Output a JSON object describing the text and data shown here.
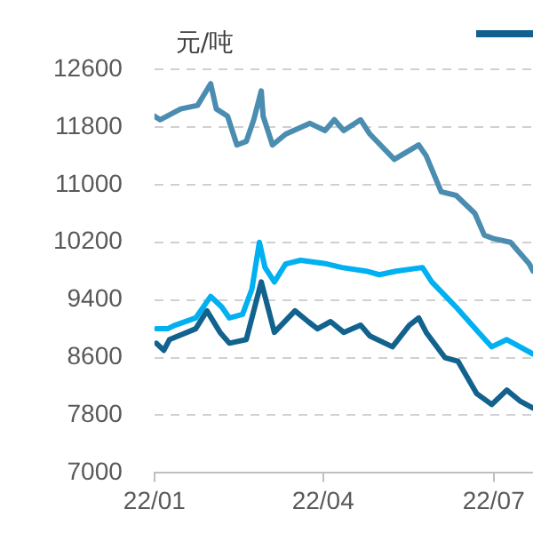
{
  "chart_data": {
    "type": "line",
    "ylabel": "元/吨",
    "ylim": [
      7000,
      12600
    ],
    "yticks": [
      7000,
      7800,
      8600,
      9400,
      10200,
      11000,
      11800,
      12600
    ],
    "xlim": [
      "--01-01",
      "--07-22"
    ],
    "xticks": [
      {
        "value": "--01-01",
        "label": "22/01"
      },
      {
        "value": "--04-01",
        "label": "22/04"
      },
      {
        "value": "--07-01",
        "label": "22/07"
      }
    ],
    "grid": "y",
    "marker": "none",
    "line_style": "solid",
    "series": [
      {
        "color": "#4a8db0",
        "x": [
          "--01-01",
          "--01-04",
          "--01-15",
          "--01-24",
          "--01-31",
          "--02-03",
          "--02-09",
          "--02-14",
          "--02-19",
          "--02-23",
          "--02-27",
          "--02-28",
          "--03-05",
          "--03-12",
          "--03-25",
          "--04-02",
          "--04-07",
          "--04-12",
          "--04-21",
          "--04-26",
          "--05-09",
          "--05-22",
          "--05-26",
          "--06-03",
          "--06-11",
          "--06-21",
          "--06-26",
          "--07-01",
          "--07-10",
          "--07-20",
          "--07-22"
        ],
        "values": [
          11950,
          11900,
          12050,
          12100,
          12400,
          12050,
          11950,
          11550,
          11600,
          11900,
          12300,
          11950,
          11550,
          11700,
          11850,
          11750,
          11900,
          11750,
          11900,
          11700,
          11350,
          11550,
          11400,
          10900,
          10850,
          10600,
          10300,
          10250,
          10200,
          9900,
          9800
        ]
      },
      {
        "color": "#00b0f0",
        "x": [
          "--01-02",
          "--01-08",
          "--01-12",
          "--01-23",
          "--01-31",
          "--02-06",
          "--02-10",
          "--02-17",
          "--02-22",
          "--02-26",
          "--03-01",
          "--03-06",
          "--03-12",
          "--03-20",
          "--04-03",
          "--04-11",
          "--04-24",
          "--05-01",
          "--05-10",
          "--05-24",
          "--05-29",
          "--06-11",
          "--06-23",
          "--06-30",
          "--07-08",
          "--07-15",
          "--07-22"
        ],
        "values": [
          9000,
          9000,
          9050,
          9150,
          9450,
          9300,
          9150,
          9200,
          9550,
          10200,
          9850,
          9650,
          9900,
          9950,
          9900,
          9850,
          9800,
          9750,
          9800,
          9850,
          9650,
          9300,
          8950,
          8750,
          8850,
          8750,
          8650
        ]
      },
      {
        "color": "#12628e",
        "x": [
          "--01-02",
          "--01-06",
          "--01-09",
          "--01-23",
          "--01-29",
          "--02-05",
          "--02-10",
          "--02-19",
          "--02-27",
          "--03-06",
          "--03-17",
          "--03-24",
          "--03-29",
          "--04-05",
          "--04-12",
          "--04-21",
          "--04-26",
          "--05-08",
          "--05-17",
          "--05-22",
          "--05-26",
          "--06-05",
          "--06-12",
          "--06-22",
          "--06-30",
          "--07-08",
          "--07-15",
          "--07-22"
        ],
        "values": [
          8800,
          8700,
          8850,
          9000,
          9250,
          8950,
          8800,
          8850,
          9650,
          8950,
          9250,
          9100,
          9000,
          9100,
          8950,
          9050,
          8900,
          8750,
          9050,
          9150,
          8950,
          8600,
          8550,
          8100,
          7950,
          8150,
          8000,
          7900
        ]
      }
    ]
  }
}
